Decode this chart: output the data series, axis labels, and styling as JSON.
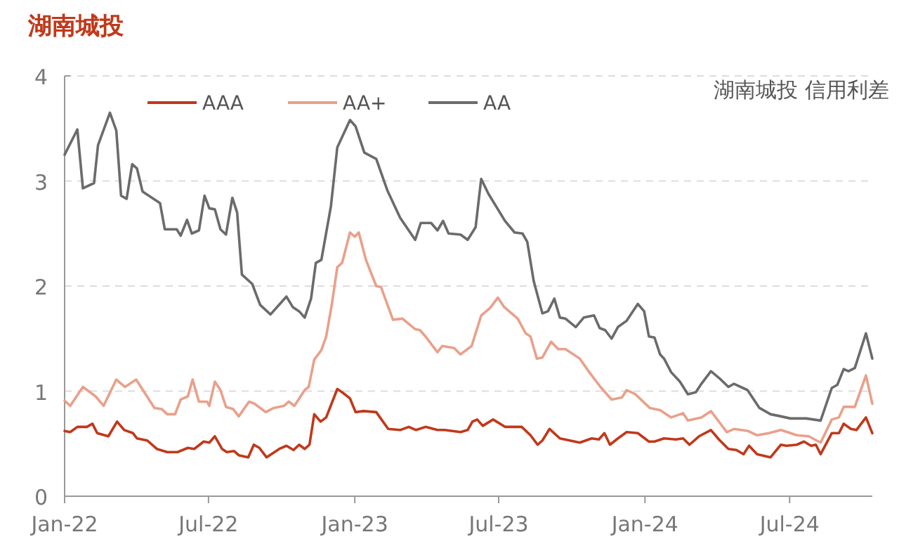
{
  "chart_data": {
    "type": "line",
    "title": "湖南城投",
    "annotations": [
      "湖南城投 信用利差"
    ],
    "xlim": [
      "2022-01-01",
      "2024-10-13"
    ],
    "xticks": [
      {
        "value": "2022-01-01",
        "label": "Jan-22"
      },
      {
        "value": "2022-07-01",
        "label": "Jul-22"
      },
      {
        "value": "2023-01-01",
        "label": "Jan-23"
      },
      {
        "value": "2023-07-01",
        "label": "Jul-23"
      },
      {
        "value": "2024-01-01",
        "label": "Jan-24"
      },
      {
        "value": "2024-07-01",
        "label": "Jul-24"
      }
    ],
    "ylim": [
      0,
      4
    ],
    "yticks": [
      0,
      1,
      2,
      3,
      4
    ],
    "grid": "y",
    "legend": "top",
    "line_style": "solid",
    "marker": "none",
    "series": [
      {
        "name": "AAA",
        "color": "#c1381a",
        "x": [
          "2022-01-01",
          "2022-01-08",
          "2022-01-17",
          "2022-01-29",
          "2022-02-05",
          "2022-02-11",
          "2022-02-25",
          "2022-03-08",
          "2022-03-17",
          "2022-03-28",
          "2022-04-02",
          "2022-04-15",
          "2022-04-27",
          "2022-05-10",
          "2022-05-23",
          "2022-06-05",
          "2022-06-13",
          "2022-06-25",
          "2022-07-02",
          "2022-07-09",
          "2022-07-18",
          "2022-07-24",
          "2022-08-02",
          "2022-08-08",
          "2022-08-20",
          "2022-08-27",
          "2022-09-03",
          "2022-09-12",
          "2022-09-28",
          "2022-10-07",
          "2022-10-16",
          "2022-10-23",
          "2022-10-30",
          "2022-11-05",
          "2022-11-11",
          "2022-11-19",
          "2022-11-26",
          "2022-12-10",
          "2022-12-16",
          "2022-12-26",
          "2023-01-02",
          "2023-01-12",
          "2023-01-28",
          "2023-02-12",
          "2023-02-27",
          "2023-03-10",
          "2023-03-19",
          "2023-03-31",
          "2023-04-15",
          "2023-04-24",
          "2023-05-14",
          "2023-05-23",
          "2023-05-29",
          "2023-06-04",
          "2023-06-11",
          "2023-06-24",
          "2023-07-09",
          "2023-07-30",
          "2023-08-10",
          "2023-08-19",
          "2023-08-25",
          "2023-09-03",
          "2023-09-16",
          "2023-10-11",
          "2023-10-26",
          "2023-11-04",
          "2023-11-11",
          "2023-11-18",
          "2023-11-28",
          "2023-12-09",
          "2023-12-23",
          "2024-01-06",
          "2024-01-13",
          "2024-01-25",
          "2024-02-09",
          "2024-02-18",
          "2024-02-26",
          "2024-03-09",
          "2024-03-24",
          "2024-04-03",
          "2024-04-15",
          "2024-04-25",
          "2024-05-04",
          "2024-05-11",
          "2024-05-21",
          "2024-06-07",
          "2024-06-20",
          "2024-06-27",
          "2024-07-10",
          "2024-07-19",
          "2024-07-28",
          "2024-08-03",
          "2024-08-09",
          "2024-08-23",
          "2024-09-01",
          "2024-09-07",
          "2024-09-16",
          "2024-09-23",
          "2024-10-05",
          "2024-10-13"
        ],
        "values": [
          0.62,
          0.61,
          0.66,
          0.66,
          0.69,
          0.6,
          0.57,
          0.71,
          0.63,
          0.6,
          0.55,
          0.53,
          0.45,
          0.42,
          0.42,
          0.46,
          0.45,
          0.52,
          0.51,
          0.57,
          0.45,
          0.42,
          0.43,
          0.39,
          0.37,
          0.49,
          0.46,
          0.37,
          0.45,
          0.48,
          0.44,
          0.49,
          0.45,
          0.49,
          0.78,
          0.71,
          0.75,
          1.02,
          0.99,
          0.93,
          0.8,
          0.81,
          0.8,
          0.64,
          0.63,
          0.66,
          0.63,
          0.66,
          0.63,
          0.63,
          0.61,
          0.63,
          0.71,
          0.73,
          0.67,
          0.73,
          0.66,
          0.66,
          0.58,
          0.49,
          0.53,
          0.64,
          0.55,
          0.51,
          0.55,
          0.54,
          0.6,
          0.49,
          0.55,
          0.61,
          0.6,
          0.52,
          0.52,
          0.55,
          0.54,
          0.55,
          0.49,
          0.57,
          0.63,
          0.54,
          0.45,
          0.44,
          0.4,
          0.48,
          0.4,
          0.37,
          0.49,
          0.48,
          0.49,
          0.52,
          0.48,
          0.49,
          0.4,
          0.6,
          0.6,
          0.69,
          0.64,
          0.63,
          0.75,
          0.6
        ]
      },
      {
        "name": "AA+",
        "color": "#e9a08a",
        "x": [
          "2022-01-01",
          "2022-01-08",
          "2022-01-24",
          "2022-02-09",
          "2022-02-19",
          "2022-03-07",
          "2022-03-18",
          "2022-04-01",
          "2022-04-24",
          "2022-05-03",
          "2022-05-10",
          "2022-05-20",
          "2022-05-27",
          "2022-06-05",
          "2022-06-11",
          "2022-06-19",
          "2022-06-29",
          "2022-07-02",
          "2022-07-09",
          "2022-07-16",
          "2022-07-23",
          "2022-08-01",
          "2022-08-08",
          "2022-08-21",
          "2022-08-28",
          "2022-09-11",
          "2022-09-21",
          "2022-10-04",
          "2022-10-10",
          "2022-10-17",
          "2022-10-30",
          "2022-11-04",
          "2022-11-11",
          "2022-11-20",
          "2022-11-26",
          "2022-12-03",
          "2022-12-10",
          "2022-12-16",
          "2022-12-26",
          "2023-01-01",
          "2023-01-06",
          "2023-01-15",
          "2023-01-28",
          "2023-02-03",
          "2023-02-18",
          "2023-03-02",
          "2023-03-18",
          "2023-03-24",
          "2023-03-31",
          "2023-04-15",
          "2023-04-21",
          "2023-05-06",
          "2023-05-14",
          "2023-05-28",
          "2023-06-09",
          "2023-06-20",
          "2023-06-30",
          "2023-07-08",
          "2023-07-25",
          "2023-08-04",
          "2023-08-10",
          "2023-08-18",
          "2023-08-25",
          "2023-09-05",
          "2023-09-14",
          "2023-09-23",
          "2023-10-11",
          "2023-10-23",
          "2023-11-06",
          "2023-11-20",
          "2023-12-03",
          "2023-12-09",
          "2023-12-20",
          "2024-01-07",
          "2024-01-20",
          "2024-02-03",
          "2024-02-18",
          "2024-02-24",
          "2024-03-12",
          "2024-03-24",
          "2024-04-13",
          "2024-04-22",
          "2024-05-10",
          "2024-05-21",
          "2024-06-05",
          "2024-06-20",
          "2024-07-10",
          "2024-07-25",
          "2024-08-09",
          "2024-08-23",
          "2024-09-01",
          "2024-09-07",
          "2024-09-21",
          "2024-10-05",
          "2024-10-13"
        ],
        "values": [
          0.91,
          0.86,
          1.04,
          0.95,
          0.86,
          1.11,
          1.04,
          1.11,
          0.84,
          0.83,
          0.78,
          0.78,
          0.92,
          0.95,
          1.11,
          0.9,
          0.9,
          0.86,
          1.09,
          1.01,
          0.85,
          0.83,
          0.76,
          0.9,
          0.88,
          0.8,
          0.84,
          0.86,
          0.9,
          0.86,
          1.01,
          1.04,
          1.3,
          1.39,
          1.52,
          1.82,
          2.18,
          2.22,
          2.51,
          2.47,
          2.51,
          2.25,
          2.0,
          1.99,
          1.68,
          1.69,
          1.59,
          1.58,
          1.52,
          1.37,
          1.43,
          1.41,
          1.35,
          1.43,
          1.72,
          1.79,
          1.89,
          1.8,
          1.69,
          1.55,
          1.52,
          1.31,
          1.32,
          1.47,
          1.4,
          1.4,
          1.31,
          1.18,
          1.04,
          0.92,
          0.94,
          1.01,
          0.97,
          0.84,
          0.82,
          0.75,
          0.79,
          0.72,
          0.75,
          0.81,
          0.61,
          0.64,
          0.62,
          0.58,
          0.6,
          0.63,
          0.58,
          0.57,
          0.51,
          0.73,
          0.75,
          0.85,
          0.85,
          1.15,
          0.88
        ]
      },
      {
        "name": "AA",
        "color": "#6b6b6b",
        "x": [
          "2022-01-01",
          "2022-01-17",
          "2022-01-24",
          "2022-02-07",
          "2022-02-12",
          "2022-02-27",
          "2022-03-07",
          "2022-03-13",
          "2022-03-20",
          "2022-03-27",
          "2022-04-02",
          "2022-04-09",
          "2022-05-01",
          "2022-05-07",
          "2022-05-22",
          "2022-05-27",
          "2022-06-04",
          "2022-06-10",
          "2022-06-19",
          "2022-06-26",
          "2022-07-02",
          "2022-07-09",
          "2022-07-16",
          "2022-07-23",
          "2022-07-31",
          "2022-08-06",
          "2022-08-12",
          "2022-08-25",
          "2022-09-04",
          "2022-09-17",
          "2022-10-07",
          "2022-10-15",
          "2022-10-23",
          "2022-10-30",
          "2022-11-07",
          "2022-11-13",
          "2022-11-20",
          "2022-12-02",
          "2022-12-10",
          "2022-12-26",
          "2023-01-02",
          "2023-01-13",
          "2023-01-28",
          "2023-02-11",
          "2023-02-27",
          "2023-03-18",
          "2023-03-25",
          "2023-04-07",
          "2023-04-15",
          "2023-04-22",
          "2023-04-29",
          "2023-05-14",
          "2023-05-23",
          "2023-06-02",
          "2023-06-09",
          "2023-06-18",
          "2023-07-09",
          "2023-07-21",
          "2023-07-31",
          "2023-08-06",
          "2023-08-14",
          "2023-08-25",
          "2023-09-01",
          "2023-09-09",
          "2023-09-16",
          "2023-09-23",
          "2023-10-06",
          "2023-10-16",
          "2023-10-29",
          "2023-11-05",
          "2023-11-12",
          "2023-11-20",
          "2023-11-28",
          "2023-12-09",
          "2023-12-23",
          "2023-12-31",
          "2024-01-06",
          "2024-01-13",
          "2024-01-20",
          "2024-01-25",
          "2024-02-03",
          "2024-02-14",
          "2024-02-24",
          "2024-03-05",
          "2024-03-12",
          "2024-03-24",
          "2024-04-04",
          "2024-04-15",
          "2024-04-22",
          "2024-05-09",
          "2024-05-24",
          "2024-06-07",
          "2024-06-20",
          "2024-07-02",
          "2024-07-22",
          "2024-08-09",
          "2024-08-23",
          "2024-08-30",
          "2024-09-07",
          "2024-09-13",
          "2024-09-21",
          "2024-10-05",
          "2024-10-13"
        ],
        "values": [
          3.25,
          3.49,
          2.93,
          2.98,
          3.34,
          3.65,
          3.48,
          2.86,
          2.83,
          3.16,
          3.12,
          2.9,
          2.79,
          2.54,
          2.54,
          2.48,
          2.63,
          2.5,
          2.53,
          2.86,
          2.74,
          2.73,
          2.54,
          2.49,
          2.84,
          2.7,
          2.11,
          2.02,
          1.82,
          1.73,
          1.9,
          1.8,
          1.76,
          1.7,
          1.88,
          2.22,
          2.25,
          2.76,
          3.32,
          3.58,
          3.52,
          3.27,
          3.21,
          2.91,
          2.65,
          2.44,
          2.6,
          2.6,
          2.53,
          2.62,
          2.5,
          2.49,
          2.44,
          2.56,
          3.02,
          2.88,
          2.62,
          2.51,
          2.5,
          2.42,
          2.05,
          1.74,
          1.76,
          1.88,
          1.7,
          1.69,
          1.61,
          1.7,
          1.72,
          1.6,
          1.58,
          1.5,
          1.61,
          1.67,
          1.83,
          1.76,
          1.52,
          1.51,
          1.35,
          1.31,
          1.18,
          1.09,
          0.97,
          0.99,
          1.07,
          1.19,
          1.12,
          1.04,
          1.07,
          1.01,
          0.84,
          0.78,
          0.76,
          0.74,
          0.74,
          0.72,
          1.03,
          1.06,
          1.21,
          1.19,
          1.22,
          1.55,
          1.31
        ]
      }
    ]
  }
}
